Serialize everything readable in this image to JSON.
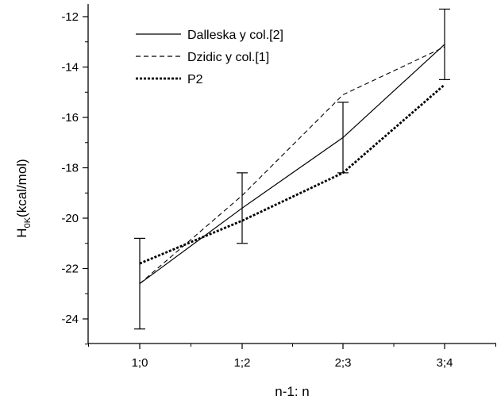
{
  "chart_data": {
    "type": "line",
    "title": "",
    "xlabel": "n-1: n",
    "ylabel_main": "H",
    "ylabel_sub": "0K",
    "ylabel_rest": "(kcal/mol)",
    "categories": [
      "1;0",
      "1;2",
      "2;3",
      "3;4"
    ],
    "ylim": [
      -25,
      -11.5
    ],
    "yticks": [
      -24,
      -22,
      -20,
      -18,
      -16,
      -14,
      -12
    ],
    "ytick_labels": [
      "-24",
      "-22",
      "-20",
      "-18",
      "-16",
      "-14",
      "-12"
    ],
    "grid": false,
    "legend_position": "top-left",
    "series": [
      {
        "name": "Dalleska y col.[2]",
        "style": "solid",
        "values": [
          -22.6,
          -19.6,
          -16.8,
          -13.1
        ],
        "error_low": [
          -24.4,
          -21.0,
          -18.2,
          -14.5
        ],
        "error_high": [
          -20.8,
          -18.2,
          -15.4,
          -11.7
        ]
      },
      {
        "name": "Dzidic y col.[1]",
        "style": "dashed",
        "values": [
          -22.6,
          -19.1,
          -15.1,
          -13.2
        ]
      },
      {
        "name": "P2",
        "style": "dotted",
        "values": [
          -21.8,
          -20.1,
          -18.2,
          -14.7
        ]
      }
    ],
    "colors": {
      "line": "#000000",
      "background": "#ffffff"
    }
  }
}
